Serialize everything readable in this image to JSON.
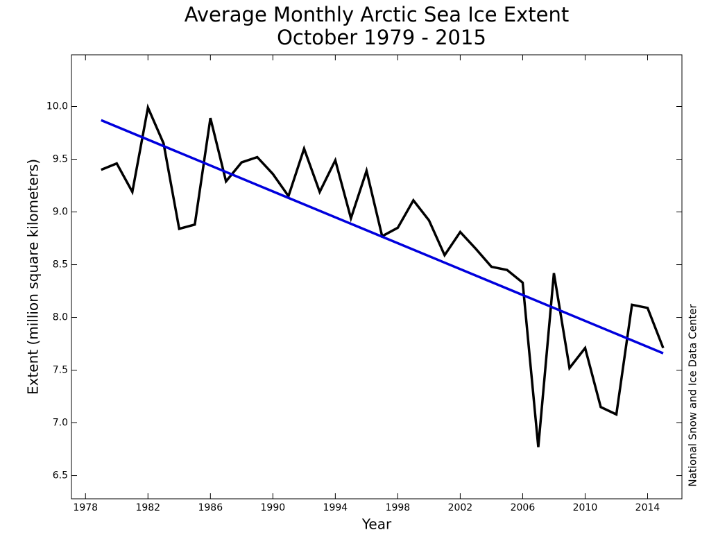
{
  "chart_data": {
    "type": "line",
    "title": "Average Monthly Arctic Sea Ice Extent",
    "subtitle": "October 1979 - 2015",
    "x_label": "Year",
    "y_label": "Extent (million square kilometers)",
    "annotation": "National Snow and Ice Data Center",
    "x": [
      1979,
      1980,
      1981,
      1982,
      1983,
      1984,
      1985,
      1986,
      1987,
      1988,
      1989,
      1990,
      1991,
      1992,
      1993,
      1994,
      1995,
      1996,
      1997,
      1998,
      1999,
      2000,
      2001,
      2002,
      2003,
      2004,
      2005,
      2006,
      2007,
      2008,
      2009,
      2010,
      2011,
      2012,
      2013,
      2014,
      2015
    ],
    "series": [
      {
        "color": "#000000",
        "values": [
          9.4,
          9.46,
          9.19,
          9.99,
          9.65,
          8.84,
          8.88,
          9.89,
          9.29,
          9.47,
          9.52,
          9.36,
          9.15,
          9.6,
          9.19,
          9.49,
          8.94,
          9.39,
          8.77,
          8.85,
          9.11,
          8.92,
          8.59,
          8.81,
          8.65,
          8.48,
          8.45,
          8.33,
          6.77,
          8.42,
          7.52,
          7.71,
          7.15,
          7.08,
          8.12,
          8.09,
          7.71
        ]
      },
      {
        "color": "#0000dd",
        "x": [
          1979,
          2015
        ],
        "values": [
          9.87,
          7.66
        ]
      }
    ],
    "xlim": [
      1977.1,
      2016.2
    ],
    "xticks": [
      1978,
      1982,
      1986,
      1990,
      1994,
      1998,
      2002,
      2006,
      2010,
      2014
    ],
    "ylim": [
      6.28,
      10.49
    ],
    "yticks": [
      {
        "value": 6.5,
        "label": "6.5"
      },
      {
        "value": 7,
        "label": "7.0"
      },
      {
        "value": 7.5,
        "label": "7.5"
      },
      {
        "value": 8,
        "label": "8.0"
      },
      {
        "value": 8.5,
        "label": "8.5"
      },
      {
        "value": 9,
        "label": "9.0"
      },
      {
        "value": 9.5,
        "label": "9.5"
      },
      {
        "value": 10,
        "label": "10.0"
      }
    ]
  }
}
